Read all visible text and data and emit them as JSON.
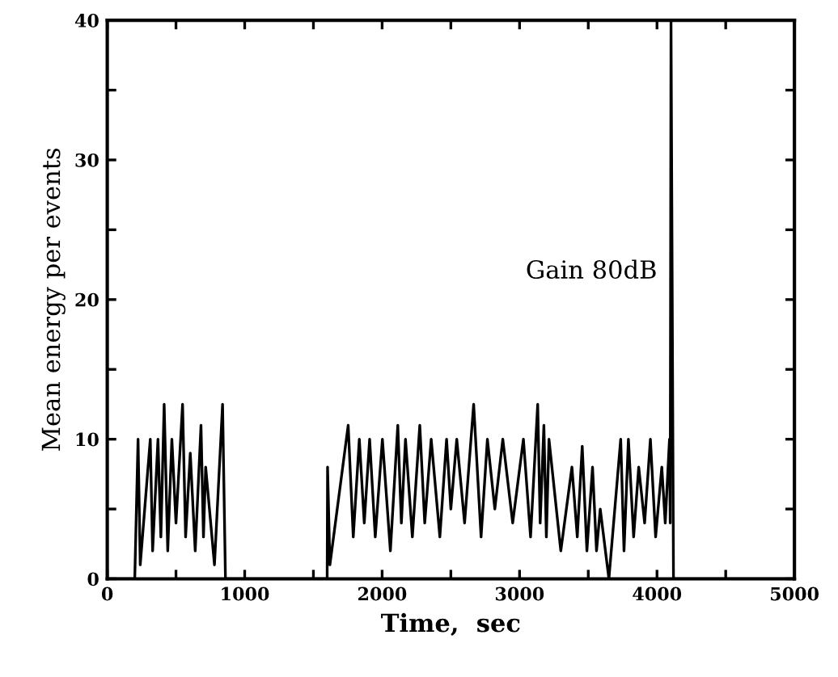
{
  "chart_data": {
    "type": "line",
    "xlabel": "Time,  sec",
    "ylabel": "Mean energy per events",
    "annotations": [
      {
        "text": "Gain 80dB",
        "x": 4100,
        "y": 22
      }
    ],
    "xlim": [
      0,
      5000
    ],
    "ylim": [
      0,
      40
    ],
    "xticks": [
      0,
      {
        "value": 500,
        "label": null
      },
      1000,
      {
        "value": 1500,
        "label": null
      },
      2000,
      {
        "value": 2500,
        "label": null
      },
      3000,
      {
        "value": 3500,
        "label": null
      },
      4000,
      {
        "value": 4500,
        "label": null
      },
      5000
    ],
    "yticks": [
      0,
      {
        "value": 5,
        "label": null
      },
      10,
      {
        "value": 15,
        "label": null
      },
      20,
      {
        "value": 25,
        "label": null
      },
      30,
      {
        "value": 35,
        "label": null
      },
      40
    ],
    "grid": false,
    "legend": false,
    "marker": "none",
    "line_style": "solid",
    "series": [
      {
        "color": "#000000",
        "x": [
          0,
          200,
          224,
          240,
          313,
          330,
          369,
          390,
          414,
          440,
          470,
          500,
          548,
          570,
          604,
          640,
          682,
          700,
          716,
          780,
          839,
          860,
          1600,
          1603,
          1620,
          1753,
          1790,
          1834,
          1870,
          1909,
          1950,
          2002,
          2060,
          2114,
          2140,
          2170,
          2220,
          2274,
          2310,
          2357,
          2420,
          2469,
          2500,
          2543,
          2600,
          2666,
          2720,
          2766,
          2820,
          2878,
          2950,
          3028,
          3080,
          3132,
          3150,
          3177,
          3195,
          3214,
          3300,
          3381,
          3420,
          3456,
          3490,
          3531,
          3560,
          3587,
          3650,
          3736,
          3760,
          3792,
          3830,
          3867,
          3910,
          3952,
          3990,
          4035,
          4060,
          4091,
          4096,
          4102,
          4120,
          5000
        ],
        "values": [
          0,
          0,
          10,
          1,
          10,
          2,
          10,
          3,
          12.5,
          2,
          10,
          4,
          12.5,
          3,
          9,
          2,
          11,
          3,
          8,
          1,
          12.5,
          0,
          0,
          8,
          1,
          11,
          3,
          10,
          4,
          10,
          3,
          10,
          2,
          11,
          4,
          10,
          3,
          11,
          4,
          10,
          3,
          10,
          5,
          10,
          4,
          12.5,
          3,
          10,
          5,
          10,
          4,
          10,
          3,
          12.5,
          4,
          11,
          3,
          10,
          2,
          8,
          3,
          9.5,
          2,
          8,
          2,
          5,
          0,
          10,
          2,
          10,
          3,
          8,
          4,
          10,
          3,
          8,
          4,
          10,
          4,
          40,
          0,
          0
        ]
      }
    ]
  }
}
